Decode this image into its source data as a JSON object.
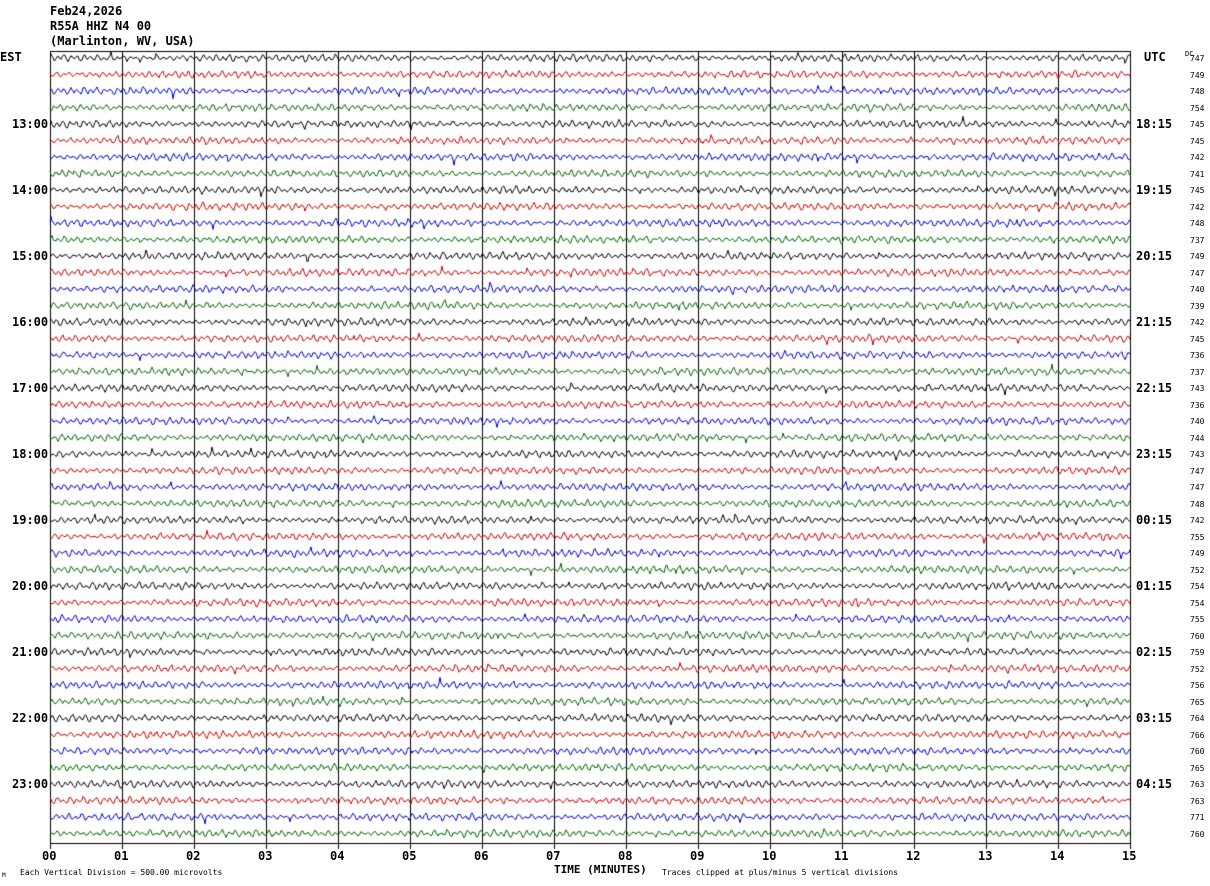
{
  "header": {
    "date": "Feb24,2026",
    "station": "R55A HHZ N4 00",
    "location": "(Marlinton, WV, USA)"
  },
  "left_tz": "EST",
  "right_tz": "UTC",
  "dc_label": "DC",
  "footer": {
    "scale_note": "Each Vertical Division =  500.00 microvolts",
    "clip_note": "Traces clipped at plus/minus 5 vertical divisions",
    "corner_mark": "M"
  },
  "trace_colors": [
    "#000000",
    "#cc0000",
    "#0000cc",
    "#006600"
  ],
  "chart_data": {
    "type": "line",
    "title": "",
    "xlabel": "TIME (MINUTES)",
    "ylabel": "",
    "xlim": [
      0,
      15
    ],
    "x_ticks": [
      "00",
      "01",
      "02",
      "03",
      "04",
      "05",
      "06",
      "07",
      "08",
      "09",
      "10",
      "11",
      "12",
      "13",
      "14",
      "15"
    ],
    "left_hour_labels": [
      "13:00",
      "14:00",
      "15:00",
      "16:00",
      "17:00",
      "18:00",
      "19:00",
      "20:00",
      "21:00",
      "22:00",
      "23:00"
    ],
    "right_hour_labels": [
      "18:15",
      "19:15",
      "20:15",
      "21:15",
      "22:15",
      "23:15",
      "00:15",
      "01:15",
      "02:15",
      "03:15",
      "04:15"
    ],
    "dc_offsets": [
      747,
      749,
      748,
      754,
      745,
      745,
      742,
      741,
      745,
      742,
      748,
      737,
      749,
      747,
      740,
      739,
      742,
      745,
      736,
      737,
      743,
      736,
      740,
      744,
      743,
      747,
      747,
      748,
      742,
      755,
      749,
      752,
      754,
      754,
      755,
      760,
      759,
      752,
      756,
      765,
      764,
      766,
      760,
      765,
      763,
      763,
      771,
      760
    ],
    "rows": 48,
    "minutes_per_row": 15
  }
}
